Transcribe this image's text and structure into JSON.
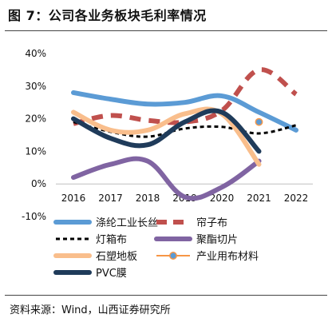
{
  "header": {
    "title": "图 7：公司各业务板块毛利率情况"
  },
  "footer": {
    "source": "资料来源：Wind，山西证券研究所"
  },
  "chart_data": {
    "type": "line",
    "title": "",
    "xlabel": "",
    "ylabel": "",
    "categories": [
      "2016",
      "2017",
      "2018",
      "2019",
      "2020",
      "2021",
      "2022"
    ],
    "yticks": [
      "40%",
      "30%",
      "20%",
      "10%",
      "0%",
      "-10%"
    ],
    "ylim": [
      -10,
      40
    ],
    "grid": false,
    "legend_position": "bottom",
    "series": [
      {
        "name": "涤纶工业长丝",
        "color": "#5b9bd5",
        "style": "solid",
        "width": 6,
        "values": [
          28,
          26,
          24.5,
          25,
          27,
          22,
          16.5
        ]
      },
      {
        "name": "帘子布",
        "color": "#c0504d",
        "style": "dashed",
        "width": 6,
        "values": [
          18.5,
          21,
          19.5,
          19,
          22.5,
          35,
          27.5
        ]
      },
      {
        "name": "灯箱布",
        "color": "#000000",
        "style": "dotted",
        "width": 3,
        "values": [
          19,
          16,
          14.5,
          17,
          17.5,
          15.5,
          18
        ]
      },
      {
        "name": "聚酯切片",
        "color": "#8064a2",
        "style": "solid",
        "width": 6,
        "values": [
          2,
          6,
          7,
          -4,
          -1,
          7,
          null
        ]
      },
      {
        "name": "石塑地板",
        "color": "#f9be8c",
        "style": "solid",
        "width": 6,
        "values": [
          22,
          16.5,
          16.5,
          21.5,
          21.5,
          6,
          null
        ]
      },
      {
        "name": "产业用布材料",
        "color": "#f79646",
        "style": "marker",
        "width": 2,
        "values": [
          null,
          null,
          null,
          null,
          null,
          19,
          null
        ]
      },
      {
        "name": "PVC膜",
        "color": "#1f3b5a",
        "style": "solid",
        "width": 6,
        "values": [
          20,
          14,
          12,
          19,
          22,
          10,
          null
        ]
      }
    ]
  }
}
